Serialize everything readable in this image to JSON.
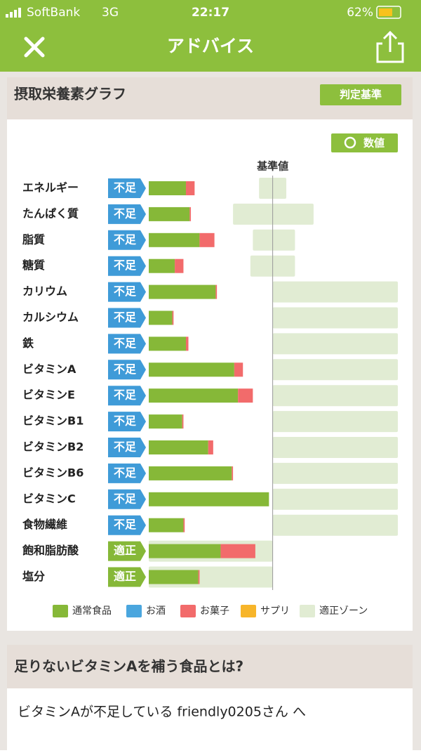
{
  "status_bar": {
    "carrier": "SoftBank",
    "network": "3G",
    "time": "22:17",
    "battery": "62%"
  },
  "nav": {
    "title": "アドバイス"
  },
  "graph_card": {
    "title": "摂取栄養素グラフ",
    "criteria_button": "判定基準",
    "value_button": "数値"
  },
  "chart_data": {
    "type": "bar",
    "orientation": "horizontal",
    "stacked": true,
    "categories": [
      "エネルギー",
      "たんぱく質",
      "脂質",
      "糖質",
      "カリウム",
      "カルシウム",
      "鉄",
      "ビタミンA",
      "ビタミンE",
      "ビタミンB1",
      "ビタミンB2",
      "ビタミンB6",
      "ビタミンC",
      "食物繊維",
      "飽和脂肪酸",
      "塩分"
    ],
    "status": [
      {
        "label": "不足",
        "color": "#3f9bd8"
      },
      {
        "label": "不足",
        "color": "#3f9bd8"
      },
      {
        "label": "不足",
        "color": "#3f9bd8"
      },
      {
        "label": "不足",
        "color": "#3f9bd8"
      },
      {
        "label": "不足",
        "color": "#3f9bd8"
      },
      {
        "label": "不足",
        "color": "#3f9bd8"
      },
      {
        "label": "不足",
        "color": "#3f9bd8"
      },
      {
        "label": "不足",
        "color": "#3f9bd8"
      },
      {
        "label": "不足",
        "color": "#3f9bd8"
      },
      {
        "label": "不足",
        "color": "#3f9bd8"
      },
      {
        "label": "不足",
        "color": "#3f9bd8"
      },
      {
        "label": "不足",
        "color": "#3f9bd8"
      },
      {
        "label": "不足",
        "color": "#3f9bd8"
      },
      {
        "label": "不足",
        "color": "#3f9bd8"
      },
      {
        "label": "適正",
        "color": "#86b838"
      },
      {
        "label": "適正",
        "color": "#86b838"
      }
    ],
    "series": [
      {
        "name": "通常食品",
        "color": "#86b838",
        "values": [
          30,
          33,
          41,
          21,
          54,
          19,
          30,
          69,
          72,
          27,
          48,
          67,
          97,
          28,
          58,
          40
        ]
      },
      {
        "name": "お酒",
        "color": "#4aa6de",
        "values": [
          0,
          0,
          0,
          0,
          0,
          0,
          0,
          0,
          0,
          0,
          0,
          0,
          0,
          0,
          0,
          0
        ]
      },
      {
        "name": "お菓子",
        "color": "#f26b6b",
        "values": [
          7,
          1,
          12,
          7,
          1,
          1,
          2,
          7,
          12,
          1,
          4,
          1,
          0,
          1,
          28,
          1
        ]
      },
      {
        "name": "サプリ",
        "color": "#f7b52a",
        "values": [
          0,
          0,
          0,
          0,
          0,
          0,
          0,
          0,
          0,
          0,
          0,
          0,
          0,
          0,
          0,
          0
        ]
      }
    ],
    "zone": {
      "name": "適正ゾーン",
      "color": "#e1ecd3",
      "ranges": [
        [
          89,
          111
        ],
        [
          68,
          133
        ],
        [
          84,
          118
        ],
        [
          82,
          118
        ],
        [
          100,
          201
        ],
        [
          100,
          201
        ],
        [
          100,
          201
        ],
        [
          100,
          201
        ],
        [
          100,
          201
        ],
        [
          100,
          201
        ],
        [
          100,
          201
        ],
        [
          100,
          201
        ],
        [
          100,
          201
        ],
        [
          100,
          201
        ],
        [
          0,
          100
        ],
        [
          0,
          100
        ]
      ]
    },
    "reference": {
      "label": "基準値",
      "value": 100
    },
    "xlim": [
      0,
      201
    ]
  },
  "advice_card": {
    "title": "足りないビタミンAを補う食品とは?",
    "message": "ビタミンAが不足している friendly0205さん へ"
  }
}
